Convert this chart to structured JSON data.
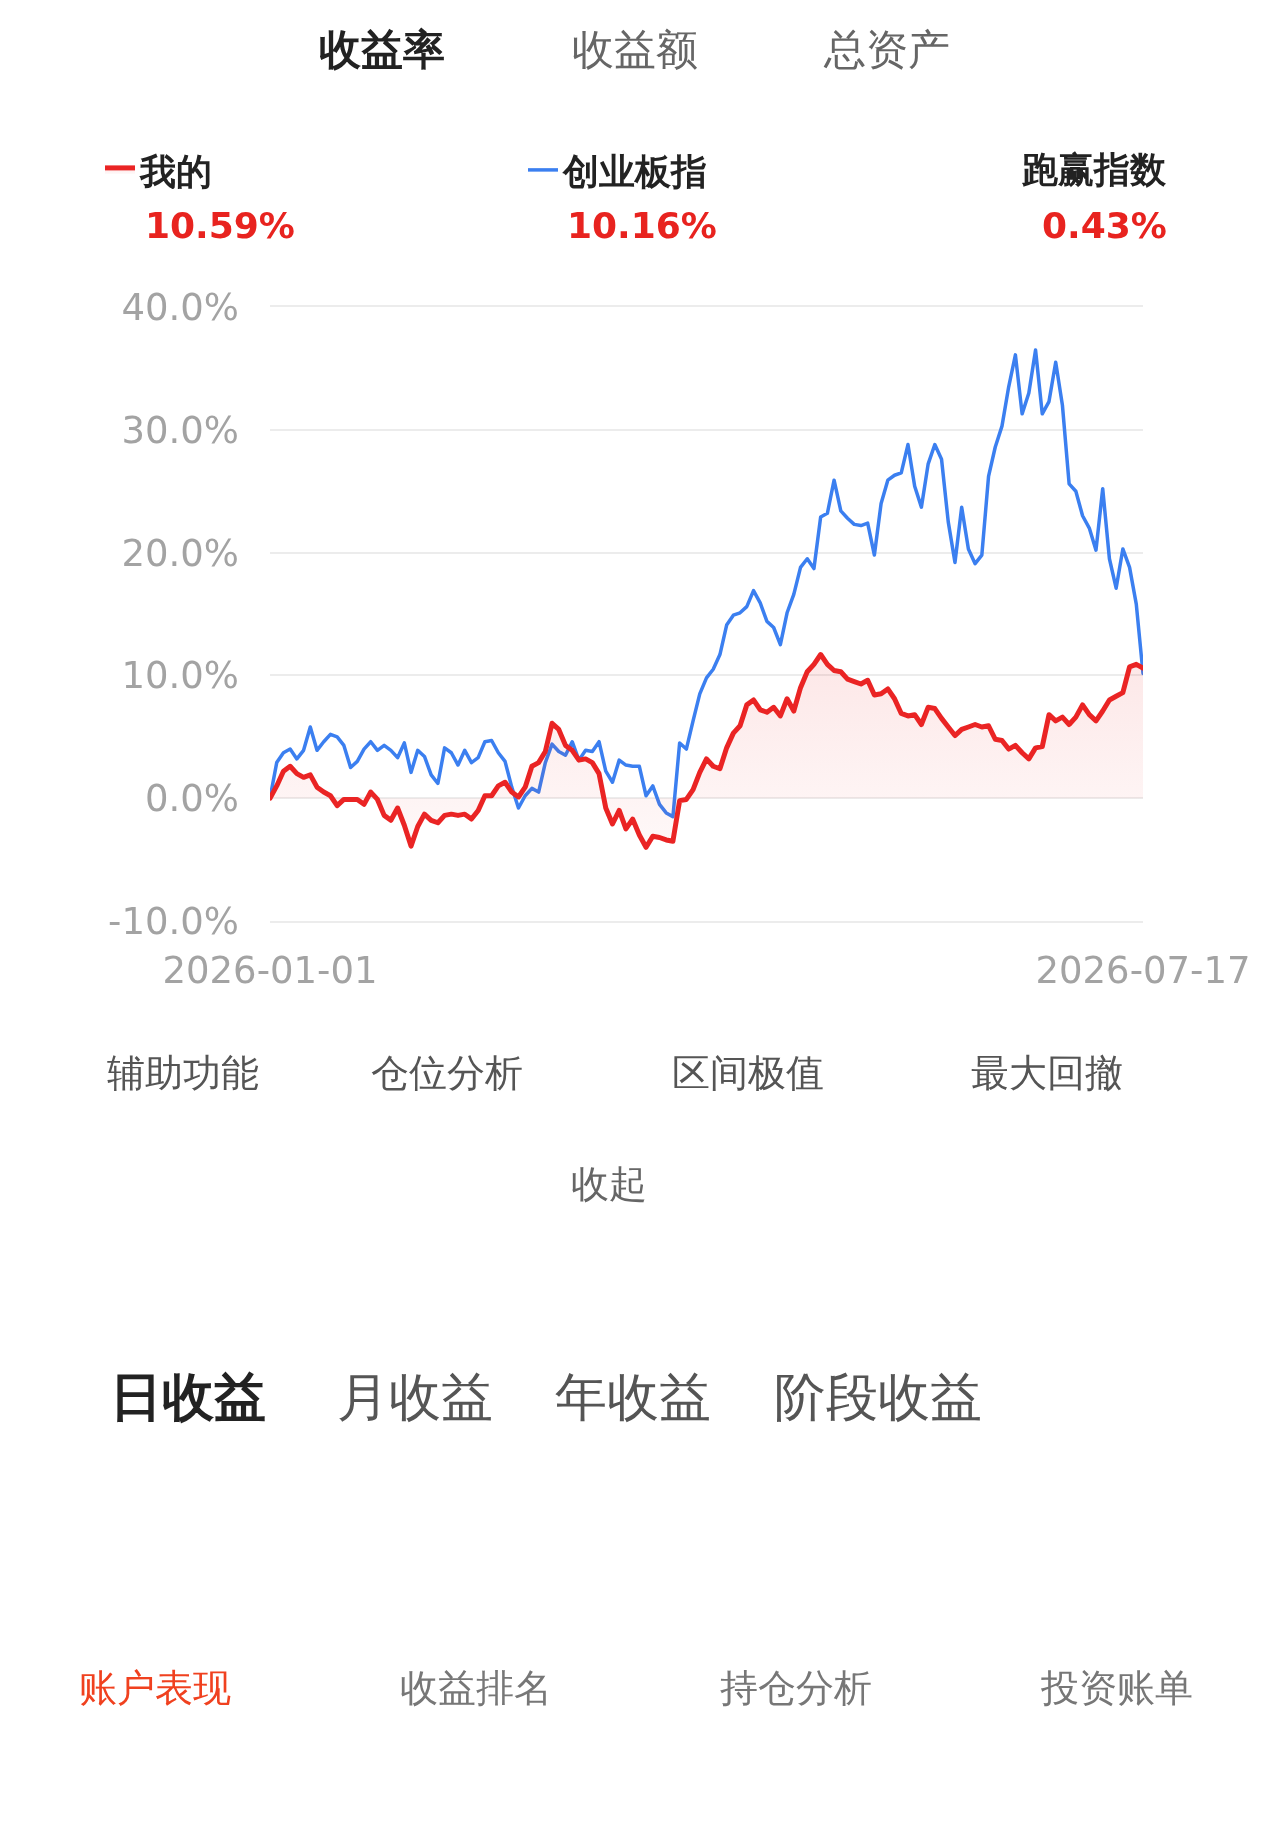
{
  "chart_data": {
    "type": "line",
    "categories": [
      "2026-01-01",
      null,
      null,
      null,
      null,
      null,
      null,
      null,
      null,
      null,
      null,
      null,
      null,
      null,
      null,
      null,
      null,
      null,
      null,
      null,
      null,
      null,
      null,
      null,
      null,
      null,
      null,
      null,
      null,
      null,
      null,
      null,
      null,
      null,
      null,
      null,
      null,
      null,
      null,
      null,
      null,
      null,
      null,
      null,
      null,
      null,
      null,
      null,
      null,
      null,
      null,
      null,
      null,
      null,
      null,
      null,
      null,
      null,
      null,
      null,
      null,
      null,
      null,
      null,
      null,
      null,
      null,
      null,
      null,
      null,
      null,
      null,
      null,
      null,
      null,
      null,
      null,
      null,
      null,
      null,
      null,
      null,
      null,
      null,
      null,
      null,
      null,
      null,
      null,
      null,
      null,
      null,
      null,
      null,
      null,
      null,
      null,
      null,
      null,
      null,
      null,
      null,
      null,
      null,
      null,
      null,
      null,
      null,
      null,
      null,
      null,
      null,
      null,
      null,
      null,
      null,
      null,
      null,
      null,
      null,
      null,
      null,
      null,
      null,
      null,
      null,
      null,
      null,
      null,
      null,
      "2026-07-17"
    ],
    "series": [
      {
        "name": "我的",
        "type": "area",
        "color": "#ea2424",
        "values": [
          0,
          1.0,
          2.2,
          2.6,
          2.0,
          1.7,
          1.9,
          0.9,
          0.5,
          0.2,
          -0.6,
          -0.1,
          -0.1,
          -0.1,
          -0.5,
          0.5,
          -0.1,
          -1.4,
          -1.8,
          -0.8,
          -2.2,
          -3.9,
          -2.3,
          -1.3,
          -1.8,
          -2.0,
          -1.4,
          -1.3,
          -1.4,
          -1.3,
          -1.7,
          -1.0,
          0.2,
          0.2,
          1.0,
          1.3,
          0.5,
          0.1,
          0.9,
          2.6,
          2.9,
          3.8,
          6.1,
          5.6,
          4.3,
          3.9,
          3.1,
          3.2,
          2.9,
          2.0,
          -0.8,
          -2.1,
          -1.0,
          -2.5,
          -1.7,
          -3.0,
          -4.0,
          -3.1,
          -3.2,
          -3.4,
          -3.5,
          -0.2,
          -0.1,
          0.7,
          2.1,
          3.2,
          2.6,
          2.4,
          4.1,
          5.3,
          5.9,
          7.6,
          8.0,
          7.2,
          7.0,
          7.4,
          6.7,
          8.1,
          7.1,
          9.0,
          10.3,
          10.9,
          11.7,
          10.9,
          10.4,
          10.3,
          9.7,
          9.5,
          9.3,
          9.6,
          8.4,
          8.5,
          8.9,
          8.1,
          6.9,
          6.7,
          6.8,
          6.0,
          7.4,
          7.3,
          6.5,
          5.8,
          5.1,
          5.6,
          5.8,
          6.0,
          5.8,
          5.9,
          4.8,
          4.7,
          4.0,
          4.3,
          3.7,
          3.2,
          4.1,
          4.2,
          6.8,
          6.3,
          6.6,
          6.0,
          6.6,
          7.6,
          6.8,
          6.3,
          7.1,
          8.0,
          8.3,
          8.6,
          10.7,
          10.9,
          10.59
        ]
      },
      {
        "name": "创业板指",
        "color": "#3b7ff0",
        "values": [
          0,
          2.9,
          3.7,
          4.0,
          3.2,
          3.9,
          5.8,
          3.9,
          4.6,
          5.2,
          5.0,
          4.3,
          2.5,
          3.0,
          4.0,
          4.6,
          3.9,
          4.3,
          3.9,
          3.3,
          4.5,
          2.1,
          3.9,
          3.4,
          1.9,
          1.2,
          4.1,
          3.7,
          2.7,
          3.9,
          2.9,
          3.3,
          4.6,
          4.7,
          3.7,
          3.0,
          0.9,
          -0.8,
          0.2,
          0.8,
          0.5,
          2.9,
          4.4,
          3.8,
          3.5,
          4.6,
          3.1,
          3.9,
          3.8,
          4.6,
          2.2,
          1.3,
          3.1,
          2.7,
          2.6,
          2.6,
          0.2,
          1.0,
          -0.5,
          -1.2,
          -1.5,
          4.5,
          4.0,
          6.3,
          8.5,
          9.8,
          10.5,
          11.7,
          14.1,
          14.9,
          15.1,
          15.6,
          16.9,
          15.9,
          14.4,
          13.9,
          12.5,
          15.1,
          16.6,
          18.8,
          19.5,
          18.7,
          22.9,
          23.2,
          25.9,
          23.4,
          22.8,
          22.3,
          22.2,
          22.4,
          19.8,
          24.0,
          25.9,
          26.3,
          26.5,
          28.8,
          25.4,
          23.7,
          27.2,
          28.8,
          27.6,
          22.5,
          19.2,
          23.7,
          20.3,
          19.1,
          19.8,
          26.2,
          28.6,
          30.3,
          33.5,
          36.1,
          31.3,
          33.0,
          36.5,
          31.3,
          32.3,
          35.5,
          32.0,
          25.6,
          25.0,
          23.0,
          22.0,
          20.2,
          25.2,
          19.5,
          17.1,
          20.3,
          18.8,
          15.8,
          10.16
        ]
      }
    ],
    "ylim": [
      -10,
      40
    ],
    "yticks": [
      {
        "value": -10,
        "label": "-10.0%"
      },
      {
        "value": 0,
        "label": "0.0%"
      },
      {
        "value": 10,
        "label": "10.0%"
      },
      {
        "value": 20,
        "label": "20.0%"
      },
      {
        "value": 30,
        "label": "30.0%"
      },
      {
        "value": 40,
        "label": "40.0%"
      }
    ],
    "grid": "y",
    "legend": "top",
    "marker": "none",
    "line_style": "solid",
    "annotations": [
      "收益率",
      "收益额",
      "总资产",
      "跑赢指数",
      "10.59%",
      "10.16%",
      "0.43%",
      "辅助功能",
      "仓位分析",
      "区间极值",
      "最大回撤",
      "收起",
      "日收益",
      "月收益",
      "年收益",
      "阶段收益",
      "账户表现",
      "收益排名",
      "持仓分析",
      "投资账单"
    ]
  }
}
